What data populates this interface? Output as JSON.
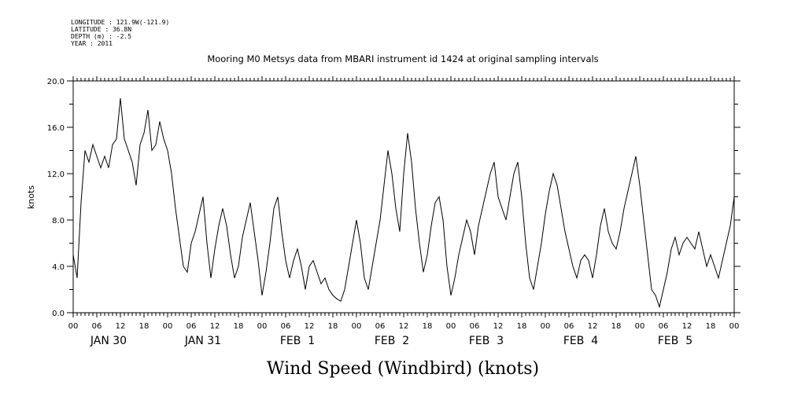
{
  "header": {
    "longitude": "LONGITUDE : 121.9W(-121.9)",
    "latitude": "LATITUDE : 36.8N",
    "depth": "DEPTH (m) : -2.5",
    "year": "YEAR : 2011"
  },
  "chart_data": {
    "type": "line",
    "title": "Mooring M0 Metsys data from MBARI instrument id 1424 at original sampling intervals",
    "xlabel": "Wind Speed (Windbird) (knots)",
    "ylabel": "knots",
    "ylim": [
      0,
      20
    ],
    "yticks": [
      "0.0",
      "4.0",
      "8.0",
      "12.0",
      "16.0",
      "20.0"
    ],
    "xlim_hours": [
      0,
      168
    ],
    "hour_tick_labels": [
      "00",
      "06",
      "12",
      "18",
      "00",
      "06",
      "12",
      "18",
      "00",
      "06",
      "12",
      "18",
      "00",
      "06",
      "12",
      "18",
      "00",
      "06",
      "12",
      "18",
      "00",
      "06",
      "12",
      "18",
      "00",
      "06",
      "12",
      "18",
      "00"
    ],
    "day_labels": [
      "JAN 30",
      "JAN 31",
      "FEB  1",
      "FEB  2",
      "FEB  3",
      "FEB  4",
      "FEB  5"
    ],
    "grid": false,
    "series": [
      {
        "x_hours": [
          0,
          1,
          2,
          3,
          4,
          5,
          6,
          7,
          8,
          9,
          10,
          11,
          12,
          13,
          14,
          15,
          16,
          17,
          18,
          19,
          20,
          21,
          22,
          23,
          24,
          25,
          26,
          27,
          28,
          29,
          30,
          31,
          32,
          33,
          34,
          35,
          36,
          37,
          38,
          39,
          40,
          41,
          42,
          43,
          44,
          45,
          46,
          47,
          48,
          49,
          50,
          51,
          52,
          53,
          54,
          55,
          56,
          57,
          58,
          59,
          60,
          61,
          62,
          63,
          64,
          65,
          66,
          67,
          68,
          69,
          70,
          71,
          72,
          73,
          74,
          75,
          76,
          77,
          78,
          79,
          80,
          81,
          82,
          83,
          84,
          85,
          86,
          87,
          88,
          89,
          90,
          91,
          92,
          93,
          94,
          95,
          96,
          97,
          98,
          99,
          100,
          101,
          102,
          103,
          104,
          105,
          106,
          107,
          108,
          109,
          110,
          111,
          112,
          113,
          114,
          115,
          116,
          117,
          118,
          119,
          120,
          121,
          122,
          123,
          124,
          125,
          126,
          127,
          128,
          129,
          130,
          131,
          132,
          133,
          134,
          135,
          136,
          137,
          138,
          139,
          140,
          141,
          142,
          143,
          144,
          145,
          146,
          147,
          148,
          149,
          150,
          151,
          152,
          153,
          154,
          155,
          156,
          157,
          158,
          159,
          160,
          161,
          162,
          163,
          164,
          165,
          166,
          167,
          168
        ],
        "values": [
          5.0,
          3.0,
          9.5,
          14.0,
          13.0,
          14.5,
          13.5,
          12.5,
          13.5,
          12.5,
          14.5,
          15.0,
          18.5,
          15.0,
          14.0,
          13.0,
          11.0,
          14.5,
          15.5,
          17.5,
          14.0,
          14.5,
          16.5,
          15.0,
          14.0,
          12.0,
          9.0,
          6.5,
          4.0,
          3.5,
          6.0,
          7.0,
          8.5,
          10.0,
          6.0,
          3.0,
          5.5,
          7.5,
          9.0,
          7.5,
          5.0,
          3.0,
          4.0,
          6.5,
          8.0,
          9.5,
          7.0,
          4.5,
          1.5,
          3.5,
          6.0,
          9.0,
          10.0,
          7.0,
          4.5,
          3.0,
          4.5,
          5.5,
          4.0,
          2.0,
          4.0,
          4.5,
          3.5,
          2.5,
          3.0,
          2.0,
          1.5,
          1.2,
          1.0,
          2.0,
          4.0,
          6.0,
          8.0,
          6.0,
          3.0,
          2.0,
          4.0,
          6.0,
          8.0,
          11.0,
          14.0,
          12.0,
          9.0,
          7.0,
          12.0,
          15.5,
          13.0,
          9.0,
          6.0,
          3.5,
          5.0,
          7.5,
          9.5,
          10.0,
          8.0,
          4.0,
          1.5,
          3.0,
          5.0,
          6.5,
          8.0,
          7.0,
          5.0,
          7.5,
          9.0,
          10.5,
          12.0,
          13.0,
          10.0,
          9.0,
          8.0,
          10.0,
          12.0,
          13.0,
          10.0,
          6.0,
          3.0,
          2.0,
          4.0,
          6.0,
          8.5,
          10.5,
          12.0,
          11.0,
          9.0,
          7.0,
          5.5,
          4.0,
          3.0,
          4.5,
          5.0,
          4.5,
          3.0,
          5.0,
          7.5,
          9.0,
          7.0,
          6.0,
          5.5,
          7.0,
          9.0,
          10.5,
          12.0,
          13.5,
          11.0,
          8.0,
          5.0,
          2.0,
          1.5,
          0.5,
          2.0,
          3.5,
          5.5,
          6.5,
          5.0,
          6.0,
          6.5,
          6.0,
          5.5,
          7.0,
          5.5,
          4.0,
          5.0,
          4.0,
          3.0,
          4.5,
          6.0,
          7.5,
          10.0
        ]
      }
    ]
  }
}
